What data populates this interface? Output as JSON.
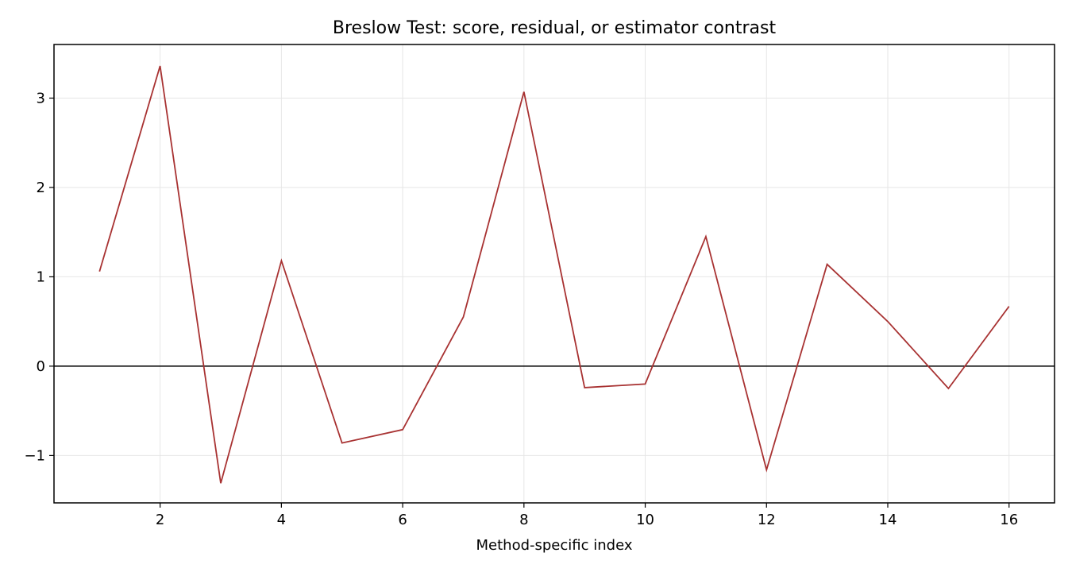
{
  "chart_data": {
    "type": "line",
    "title": "Breslow Test: score, residual, or estimator contrast",
    "xlabel": "Method-specific index",
    "ylabel": "",
    "xlim": [
      0.25,
      16.75
    ],
    "ylim": [
      -1.53,
      3.6
    ],
    "x_ticks": [
      2,
      4,
      6,
      8,
      10,
      12,
      14,
      16
    ],
    "y_ticks": [
      -1,
      0,
      1,
      2,
      3
    ],
    "y_tick_labels": [
      "−1",
      "0",
      "1",
      "2",
      "3"
    ],
    "grid": true,
    "reference_line_y": 0,
    "series": [
      {
        "color": "#a83232",
        "x": [
          1,
          2,
          3,
          4,
          5,
          6,
          7,
          8,
          9,
          10,
          11,
          12,
          13,
          14,
          15,
          16
        ],
        "values": [
          1.06,
          3.36,
          -1.31,
          1.18,
          -0.86,
          -0.71,
          0.55,
          3.07,
          -0.24,
          -0.2,
          1.45,
          -1.16,
          1.14,
          0.5,
          -0.25,
          0.67
        ]
      }
    ]
  }
}
